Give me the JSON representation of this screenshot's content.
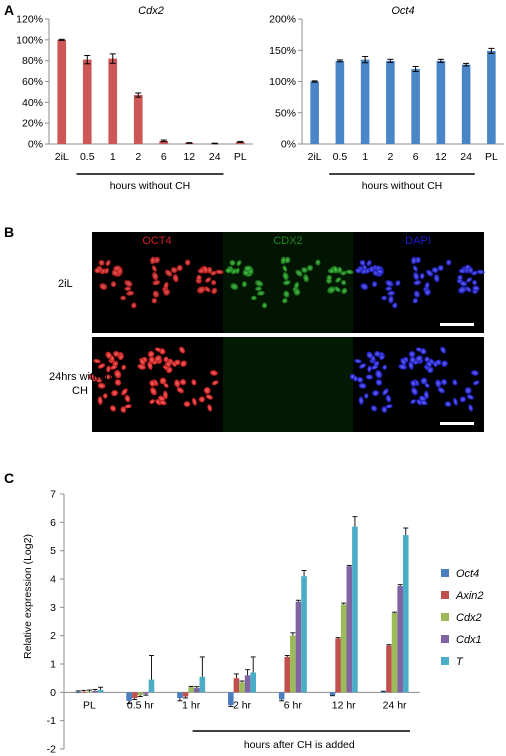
{
  "panels": {
    "a": "A",
    "b": "B",
    "c": "C"
  },
  "chart_data": [
    {
      "type": "bar",
      "title": "Cdx2",
      "categories": [
        "2iL",
        "0.5",
        "1",
        "2",
        "6",
        "12",
        "24",
        "PL"
      ],
      "values": [
        100,
        81,
        82,
        47,
        3,
        1,
        0.5,
        2
      ],
      "errors": [
        0.5,
        4,
        4.5,
        2,
        0.8,
        0.3,
        0.3,
        0.5
      ],
      "yticks": [
        "0%",
        "20%",
        "40%",
        "60%",
        "80%",
        "100%",
        "120%"
      ],
      "ylim": [
        0,
        120
      ],
      "xgroup_label": "hours without CH",
      "color": "#cd5656",
      "grid": false
    },
    {
      "type": "bar",
      "title": "Oct4",
      "categories": [
        "2iL",
        "0.5",
        "1",
        "2",
        "6",
        "12",
        "24",
        "PL"
      ],
      "values": [
        100,
        133,
        135,
        133,
        120,
        133,
        127,
        149
      ],
      "errors": [
        1,
        1.5,
        5,
        2.5,
        4,
        2.5,
        2,
        4
      ],
      "yticks": [
        "0%",
        "50%",
        "100%",
        "150%",
        "200%"
      ],
      "ylim": [
        0,
        200
      ],
      "xgroup_label": "hours without CH",
      "color": "#4a85c8",
      "grid": false
    },
    {
      "type": "bar",
      "ylabel": "Relative expression (Log2)",
      "categories": [
        "PL",
        "0.5 hr",
        "1 hr",
        "2 hr",
        "6 hr",
        "12 hr",
        "24 hr"
      ],
      "ylim": [
        -2,
        7
      ],
      "yticks": [
        "-2",
        "-1",
        "0",
        "1",
        "2",
        "3",
        "4",
        "5",
        "6",
        "7"
      ],
      "xgroup_label": "hours after CH is added",
      "legend_position": "right",
      "series": [
        {
          "name": "Oct4",
          "color": "#4a7ec0",
          "values": [
            0.0,
            -0.3,
            -0.2,
            -0.45,
            -0.25,
            -0.1,
            0.02
          ],
          "errors": [
            0.05,
            0.1,
            0.1,
            0.05,
            0.05,
            0.02,
            0.02
          ]
        },
        {
          "name": "Axin2",
          "color": "#c0504d",
          "values": [
            0.02,
            -0.2,
            -0.15,
            0.5,
            1.25,
            1.9,
            1.65
          ],
          "errors": [
            0.05,
            0.05,
            0.05,
            0.15,
            0.05,
            0.03,
            0.03
          ]
        },
        {
          "name": "Cdx2",
          "color": "#9bbb59",
          "values": [
            0.03,
            -0.1,
            0.18,
            0.35,
            2.0,
            3.1,
            2.8
          ],
          "errors": [
            0.05,
            0.05,
            0.03,
            0.05,
            0.1,
            0.05,
            0.03
          ]
        },
        {
          "name": "Cdx1",
          "color": "#8064a2",
          "values": [
            0.05,
            -0.05,
            0.15,
            0.6,
            3.2,
            4.45,
            3.75
          ],
          "errors": [
            0.05,
            0.05,
            0.05,
            0.2,
            0.05,
            0.03,
            0.05
          ]
        },
        {
          "name": "T",
          "color": "#4bacc6",
          "values": [
            0.08,
            0.45,
            0.55,
            0.7,
            4.1,
            5.85,
            5.55
          ],
          "errors": [
            0.1,
            0.85,
            0.7,
            0.55,
            0.2,
            0.35,
            0.25
          ]
        }
      ]
    }
  ],
  "micro": {
    "col_labels": [
      "OCT4",
      "CDX2",
      "DAPI"
    ],
    "col_colors": [
      "#d42020",
      "#1f8a1f",
      "#1e1ecf"
    ],
    "row_labels": [
      "2iL",
      "24hrs without\nCH"
    ]
  }
}
